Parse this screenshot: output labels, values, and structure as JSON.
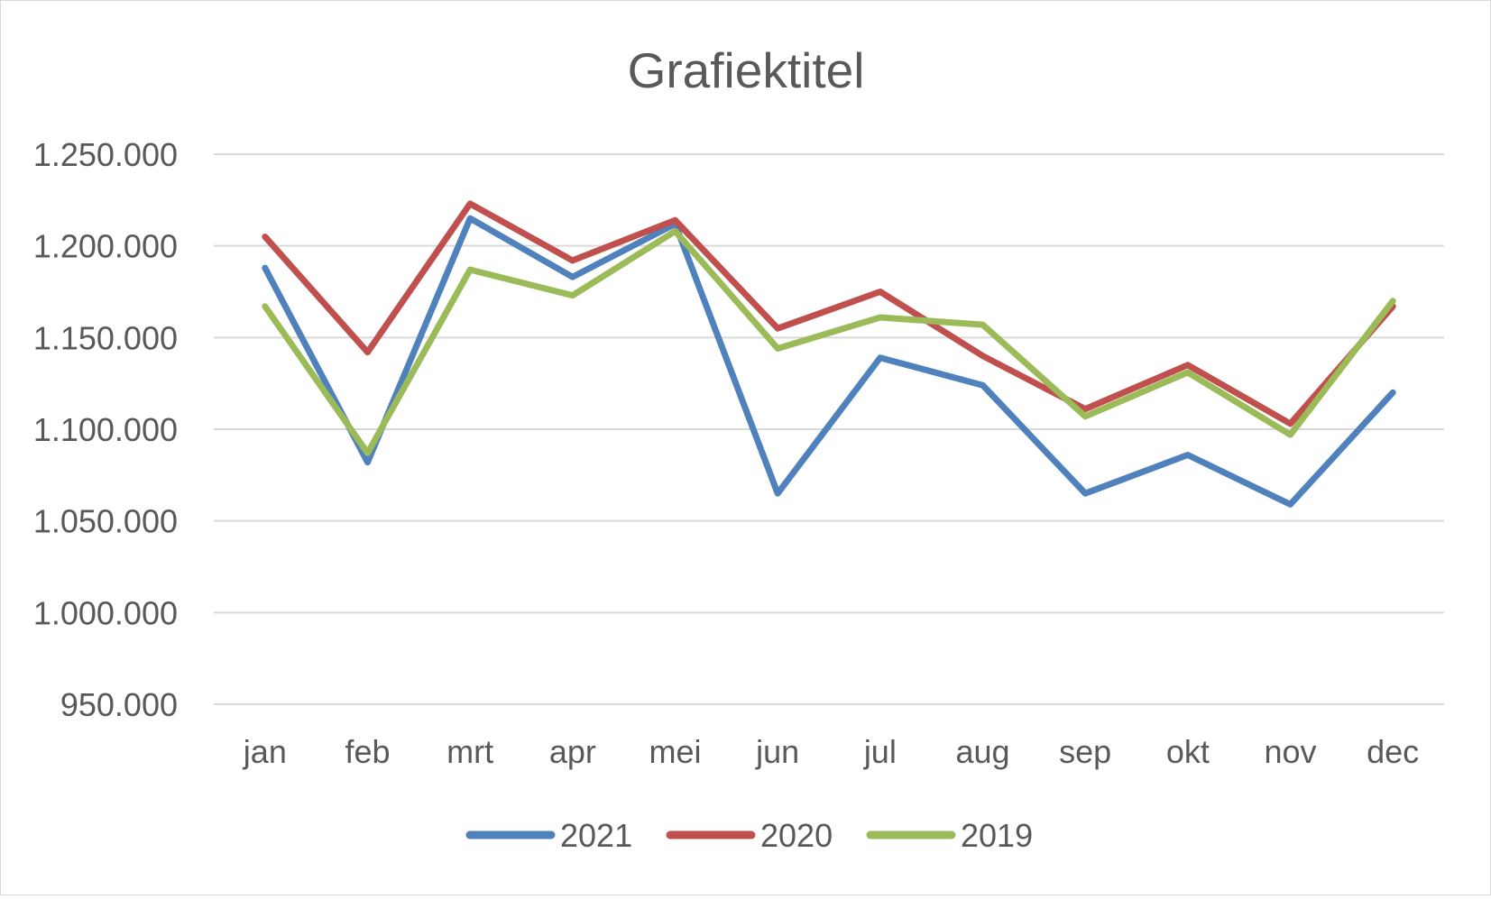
{
  "chart_data": {
    "type": "line",
    "title": "Grafiektitel",
    "xlabel": "",
    "ylabel": "",
    "categories": [
      "jan",
      "feb",
      "mrt",
      "apr",
      "mei",
      "jun",
      "jul",
      "aug",
      "sep",
      "okt",
      "nov",
      "dec"
    ],
    "ylim": [
      950000,
      1250000
    ],
    "yticks": [
      950000,
      1000000,
      1050000,
      1100000,
      1150000,
      1200000,
      1250000
    ],
    "ytick_labels": [
      "950.000",
      "1.000.000",
      "1.050.000",
      "1.100.000",
      "1.150.000",
      "1.200.000",
      "1.250.000"
    ],
    "grid": true,
    "legend_position": "bottom",
    "series": [
      {
        "name": "2021",
        "color": "#4f81bd",
        "values": [
          1188000,
          1082000,
          1215000,
          1183000,
          1212000,
          1065000,
          1139000,
          1124000,
          1065000,
          1086000,
          1059000,
          1120000
        ]
      },
      {
        "name": "2020",
        "color": "#c0504d",
        "values": [
          1205000,
          1142000,
          1223000,
          1192000,
          1214000,
          1155000,
          1175000,
          1140000,
          1111000,
          1135000,
          1103000,
          1167000
        ]
      },
      {
        "name": "2019",
        "color": "#9bbb59",
        "values": [
          1167000,
          1087000,
          1187000,
          1173000,
          1208000,
          1144000,
          1161000,
          1157000,
          1107000,
          1131000,
          1097000,
          1170000
        ]
      }
    ]
  }
}
